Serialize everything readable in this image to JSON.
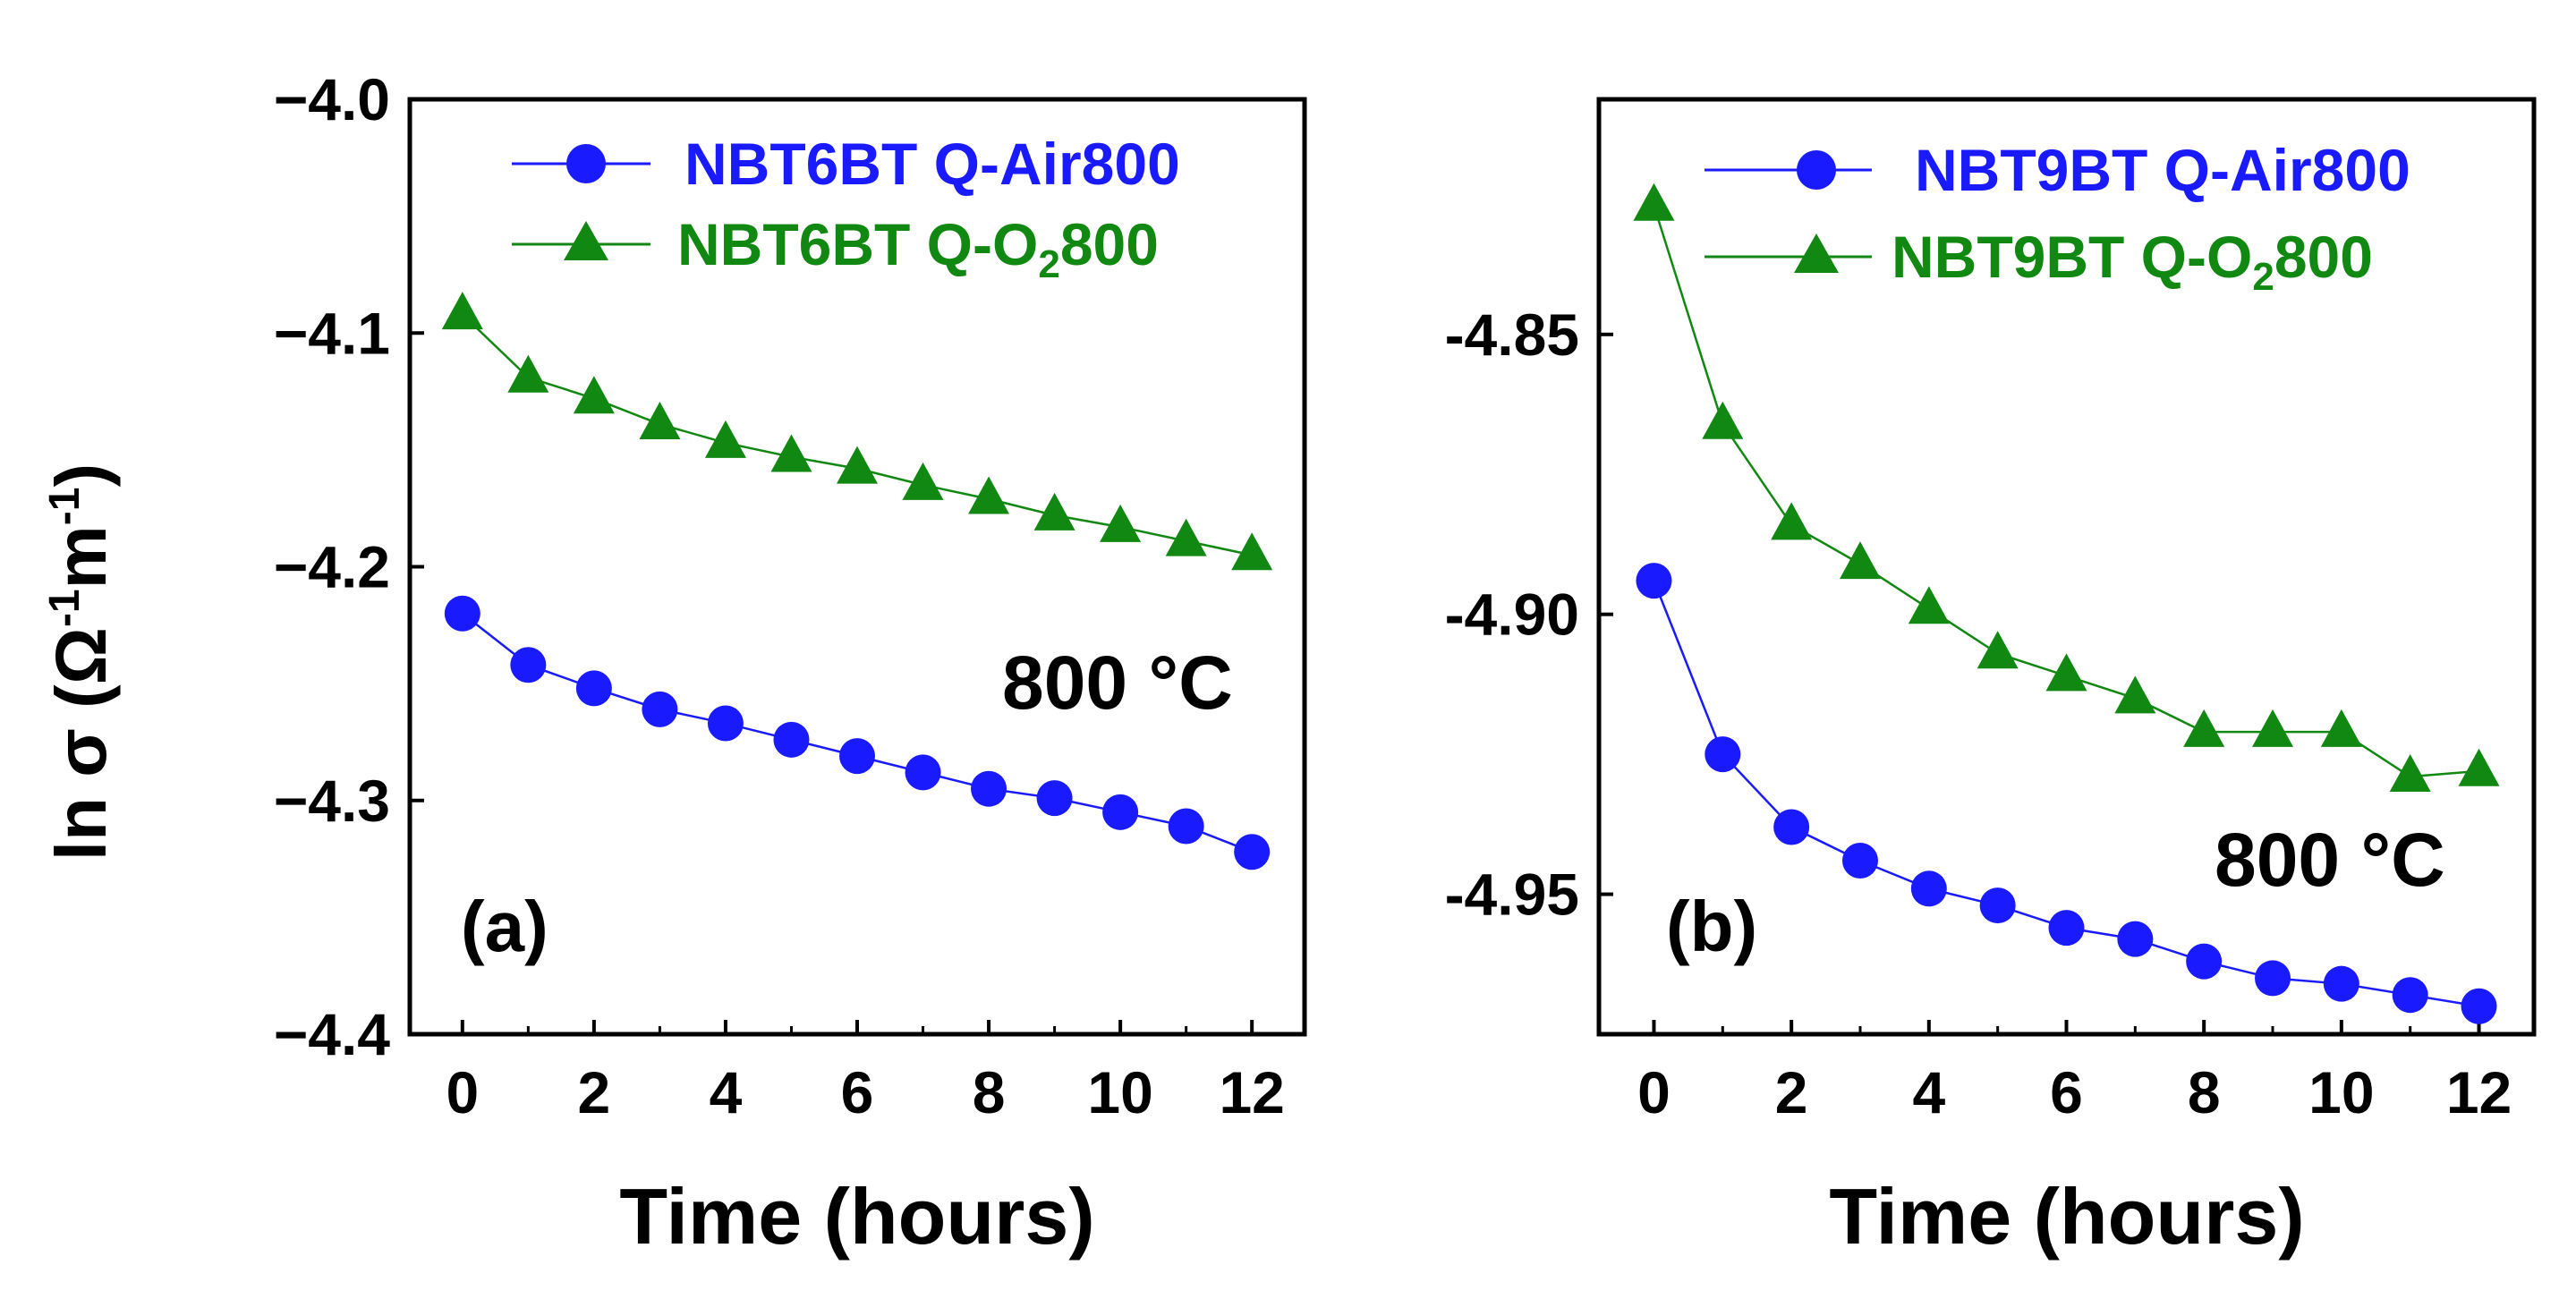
{
  "ylabel_main": "ln σ (Ω",
  "ylabel_sup1": "-1",
  "ylabel_mid": "m",
  "ylabel_sup2": "-1",
  "ylabel_end": ")",
  "colors": {
    "air": "#1a1aff",
    "o2": "#118811",
    "axis": "#000000"
  },
  "chart_data": [
    {
      "type": "line",
      "panel_label": "(a)",
      "annotation": "800 °C",
      "xlabel": "Time (hours)",
      "xlim": [
        -0.8,
        12.8
      ],
      "ylim": [
        -4.4,
        -4.0
      ],
      "x_ticks": [
        "0",
        "2",
        "4",
        "6",
        "8",
        "10",
        "12"
      ],
      "y_ticks": [
        "−4.0",
        "−4.1",
        "−4.2",
        "−4.3",
        "−4.4"
      ],
      "y_tick_values": [
        -4.0,
        -4.1,
        -4.2,
        -4.3,
        -4.4
      ],
      "x": [
        0,
        1,
        2,
        3,
        4,
        5,
        6,
        7,
        8,
        9,
        10,
        11,
        12
      ],
      "series": [
        {
          "name": "NBT6BT Q-Air800",
          "legend_text": "NBT6BT Q-Air800",
          "marker": "circle",
          "values": [
            -4.22,
            -4.242,
            -4.252,
            -4.261,
            -4.267,
            -4.274,
            -4.281,
            -4.288,
            -4.295,
            -4.299,
            -4.305,
            -4.311,
            -4.322
          ]
        },
        {
          "name": "NBT6BT Q-O2800",
          "legend_text": "NBT6BT Q-O",
          "legend_sub": "2",
          "legend_tail": "800",
          "marker": "triangle",
          "values": [
            -4.092,
            -4.119,
            -4.128,
            -4.139,
            -4.147,
            -4.153,
            -4.158,
            -4.165,
            -4.171,
            -4.178,
            -4.183,
            -4.189,
            -4.195
          ]
        }
      ]
    },
    {
      "type": "line",
      "panel_label": "(b)",
      "annotation": "800 °C",
      "xlabel": "Time (hours)",
      "xlim": [
        -0.8,
        12.8
      ],
      "ylim": [
        -4.975,
        -4.808
      ],
      "x_ticks": [
        "0",
        "2",
        "4",
        "6",
        "8",
        "10",
        "12"
      ],
      "y_ticks": [
        "-4.85",
        "-4.90",
        "-4.95"
      ],
      "y_tick_values": [
        -4.85,
        -4.9,
        -4.95
      ],
      "x": [
        0,
        1,
        2,
        3,
        4,
        5,
        6,
        7,
        8,
        9,
        10,
        11,
        12
      ],
      "series": [
        {
          "name": "NBT9BT Q-Air800",
          "legend_text": "NBT9BT Q-Air800",
          "marker": "circle",
          "values": [
            -4.894,
            -4.925,
            -4.938,
            -4.944,
            -4.949,
            -4.952,
            -4.956,
            -4.958,
            -4.962,
            -4.965,
            -4.966,
            -4.968,
            -4.97
          ]
        },
        {
          "name": "NBT9BT Q-O2800",
          "legend_text": "NBT9BT Q-O",
          "legend_sub": "2",
          "legend_tail": "800",
          "marker": "triangle",
          "values": [
            -4.827,
            -4.866,
            -4.884,
            -4.891,
            -4.899,
            -4.907,
            -4.911,
            -4.915,
            -4.921,
            -4.921,
            -4.921,
            -4.929,
            -4.928
          ]
        }
      ]
    }
  ]
}
